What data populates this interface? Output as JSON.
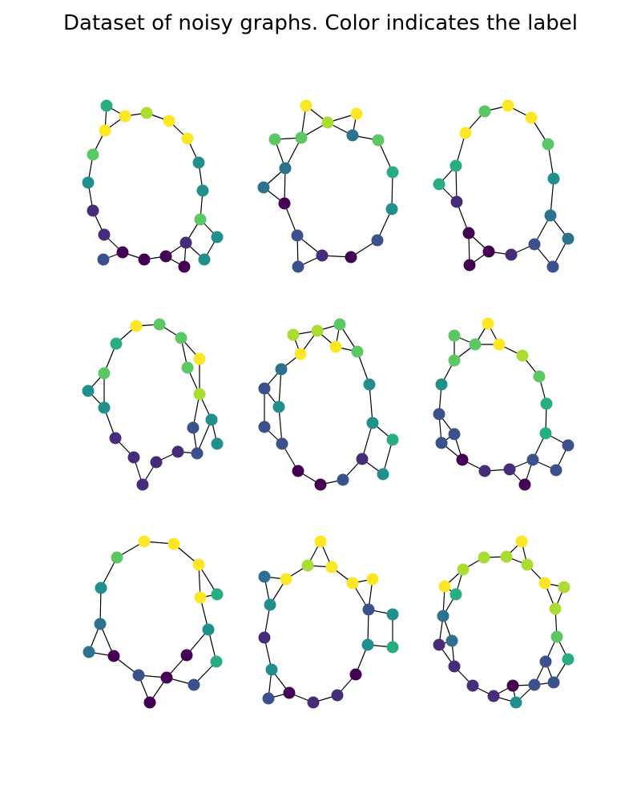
{
  "title": "Dataset of noisy graphs. Color indicates the label",
  "colors": {
    "background": "#ffffff",
    "edge": "#000000",
    "colormap": "viridis",
    "palette": [
      "#440154",
      "#472c7a",
      "#3b518b",
      "#2c718e",
      "#21908d",
      "#27ad81",
      "#5cc863",
      "#aadc32",
      "#fde725"
    ]
  },
  "graph_count": 9,
  "layout": "3x3 grid of ring-shaped graphs; nodes colored by label"
}
